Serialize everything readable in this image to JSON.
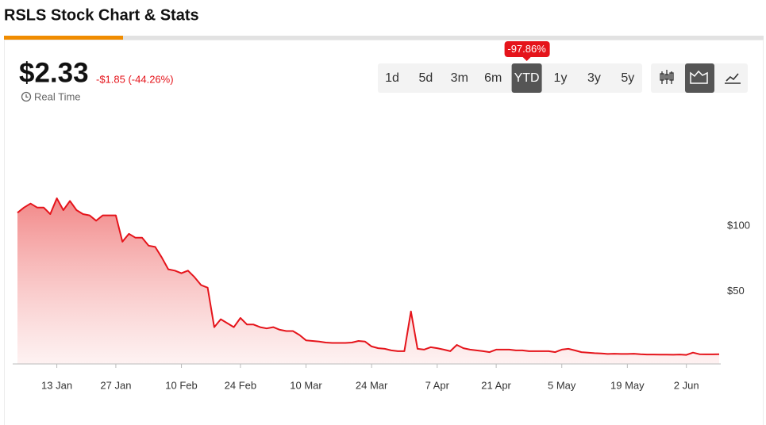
{
  "page": {
    "title": "RSLS Stock Chart & Stats",
    "price": "$2.33",
    "change": "-$1.85 (-44.26%)",
    "real_time": "Real Time",
    "ranges": [
      "1d",
      "5d",
      "3m",
      "6m",
      "YTD",
      "1y",
      "3y",
      "5y"
    ],
    "active_range": "YTD",
    "range_change": "-97.86%"
  },
  "chart_data": {
    "type": "area",
    "color": "#e5141b",
    "grid": false,
    "y_axis_side": "right",
    "categories": [
      null,
      null,
      null,
      null,
      null,
      null,
      "13 Jan",
      null,
      null,
      null,
      null,
      null,
      null,
      null,
      null,
      "27 Jan",
      null,
      null,
      null,
      null,
      null,
      null,
      null,
      null,
      null,
      "10 Feb",
      null,
      null,
      null,
      null,
      null,
      null,
      null,
      null,
      "24 Feb",
      null,
      null,
      null,
      null,
      null,
      null,
      null,
      null,
      null,
      "10 Mar",
      null,
      null,
      null,
      null,
      null,
      null,
      null,
      null,
      null,
      "24 Mar",
      null,
      null,
      null,
      null,
      null,
      null,
      null,
      null,
      null,
      "7 Apr",
      null,
      null,
      null,
      null,
      null,
      null,
      null,
      null,
      "21 Apr",
      null,
      null,
      null,
      null,
      null,
      null,
      null,
      null,
      null,
      "5 May",
      null,
      null,
      null,
      null,
      null,
      null,
      null,
      null,
      null,
      "19 May",
      null,
      null,
      null,
      null,
      null,
      null,
      null,
      null,
      "2 Jun",
      null,
      null,
      null,
      null,
      null
    ],
    "values": [
      110,
      114,
      117,
      114,
      114,
      109,
      121,
      112,
      119,
      112,
      109,
      108,
      104,
      108,
      108,
      108,
      88,
      94,
      91,
      91,
      85,
      84,
      76,
      67,
      66,
      64,
      66,
      61,
      55,
      53,
      23,
      29,
      26,
      23,
      30,
      25,
      25,
      23,
      22,
      23,
      21,
      20,
      20,
      17,
      13,
      12.5,
      12,
      11.3,
      11,
      11,
      11,
      11.3,
      12.5,
      12,
      8.3,
      7,
      6.5,
      5.3,
      4.7,
      4.7,
      35,
      6.5,
      5.9,
      7.7,
      7,
      5.9,
      4.7,
      9.5,
      7,
      5.9,
      5.3,
      4.7,
      4,
      5.9,
      5.9,
      5.9,
      5.3,
      5.3,
      4.7,
      4.7,
      4.7,
      4.7,
      4,
      5.9,
      6.5,
      5.3,
      4,
      3.6,
      3.2,
      3,
      2.6,
      2.8,
      2.6,
      2.6,
      2.8,
      2.4,
      2.2,
      2.2,
      2.1,
      2.1,
      2,
      2.2,
      1.9,
      3.6,
      2.4,
      2.3,
      2.3,
      2.33
    ],
    "ylim": [
      -5,
      150
    ],
    "yticks": [
      {
        "value": 50,
        "label": "$50"
      },
      {
        "value": 100,
        "label": "$100"
      }
    ]
  }
}
